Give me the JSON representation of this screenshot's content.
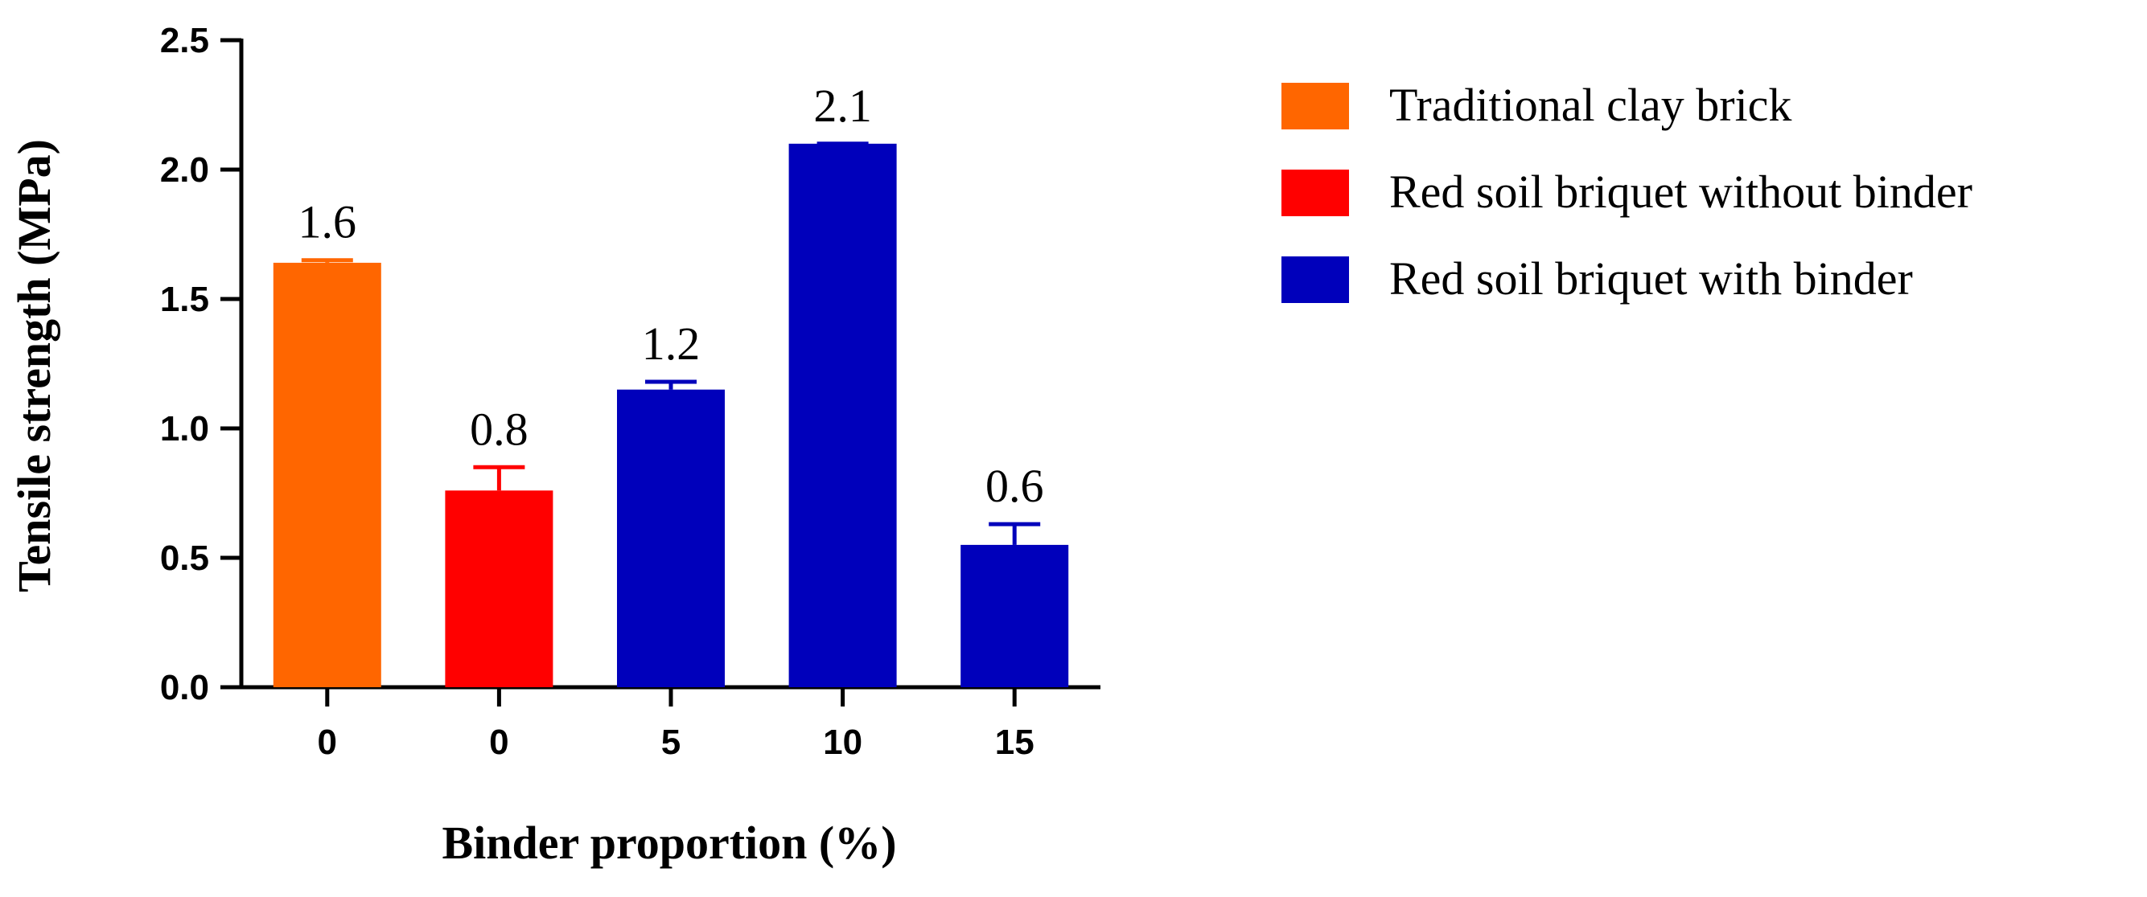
{
  "chart_data": {
    "type": "bar",
    "xlabel": "Binder proportion (%)",
    "ylabel": "Tensile strength (MPa)",
    "ylim": [
      0,
      2.5
    ],
    "yticks": [
      "0.0",
      "0.5",
      "1.0",
      "1.5",
      "2.0",
      "2.5"
    ],
    "categories": [
      "0",
      "0",
      "5",
      "10",
      "15"
    ],
    "values": [
      1.64,
      0.76,
      1.15,
      2.1,
      0.55
    ],
    "errors": [
      0.01,
      0.09,
      0.03,
      0.0,
      0.08
    ],
    "data_labels": [
      "1.6",
      "0.8",
      "1.2",
      "2.1",
      "0.6"
    ],
    "bar_series": [
      0,
      1,
      2,
      2,
      2
    ],
    "series": [
      {
        "name": "Traditional clay brick",
        "color": "#FF6600"
      },
      {
        "name": "Red soil briquet without binder",
        "color": "#FF0000"
      },
      {
        "name": "Red soil briquet with binder",
        "color": "#0000BB"
      }
    ],
    "legend_position": "right",
    "grid": false
  }
}
